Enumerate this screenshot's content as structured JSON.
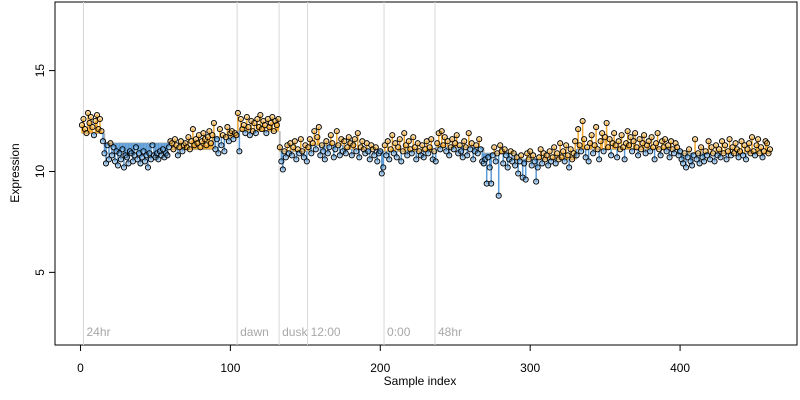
{
  "chart_data": {
    "type": "scatter",
    "xlabel": "Sample index",
    "ylabel": "Expression",
    "xlim": [
      -17,
      478
    ],
    "ylim": [
      1.4,
      18.4
    ],
    "xticks": [
      0,
      100,
      200,
      300,
      400
    ],
    "yticks": [
      5,
      10,
      15
    ],
    "above_color": "#f0a830",
    "below_color": "#5b9bd5",
    "fit_color": "#b0b0b0",
    "marker_color": "#d8d8d8",
    "markers": [
      {
        "x": 2,
        "label": "24hr"
      },
      {
        "x": 104.5,
        "label": "dawn"
      },
      {
        "x": 132.5,
        "label": "dusk"
      },
      {
        "x": 151.5,
        "label": "12:00"
      },
      {
        "x": 202.5,
        "label": "0:00"
      },
      {
        "x": 236.5,
        "label": "48hr"
      }
    ],
    "fit": [
      {
        "start": 1,
        "end": 15,
        "value": 11.9
      },
      {
        "start": 16,
        "end": 60,
        "value": 11.4
      },
      {
        "start": 61,
        "end": 88,
        "value": 11.1
      },
      {
        "start": 89,
        "end": 104,
        "value": 11.7
      },
      {
        "start": 105,
        "end": 132,
        "value": 12.0
      },
      {
        "start": 133,
        "end": 152,
        "value": 11.0
      },
      {
        "start": 153,
        "end": 175,
        "value": 11.3
      },
      {
        "start": 176,
        "end": 200,
        "value": 11.1
      },
      {
        "start": 201,
        "end": 236,
        "value": 11.0
      },
      {
        "start": 237,
        "end": 268,
        "value": 11.2
      },
      {
        "start": 269,
        "end": 290,
        "value": 10.9
      },
      {
        "start": 291,
        "end": 330,
        "value": 10.6
      },
      {
        "start": 331,
        "end": 400,
        "value": 11.1
      },
      {
        "start": 401,
        "end": 460,
        "value": 10.9
      }
    ],
    "x": [
      1,
      2,
      3,
      4,
      5,
      6,
      7,
      8,
      9,
      10,
      11,
      12,
      13,
      14,
      15,
      16,
      17,
      18,
      19,
      20,
      21,
      22,
      23,
      24,
      25,
      26,
      27,
      28,
      29,
      30,
      31,
      32,
      33,
      34,
      35,
      36,
      37,
      38,
      39,
      40,
      41,
      42,
      43,
      44,
      45,
      46,
      47,
      48,
      49,
      50,
      51,
      52,
      53,
      54,
      55,
      56,
      57,
      58,
      59,
      60,
      61,
      62,
      63,
      64,
      65,
      66,
      67,
      68,
      69,
      70,
      71,
      72,
      73,
      74,
      75,
      76,
      77,
      78,
      79,
      80,
      81,
      82,
      83,
      84,
      85,
      86,
      87,
      88,
      89,
      90,
      91,
      92,
      93,
      94,
      95,
      96,
      97,
      98,
      99,
      100,
      101,
      102,
      103,
      104,
      105,
      106,
      107,
      108,
      109,
      110,
      111,
      112,
      113,
      114,
      115,
      116,
      117,
      118,
      119,
      120,
      121,
      122,
      123,
      124,
      125,
      126,
      127,
      128,
      129,
      130,
      131,
      132,
      133,
      134,
      135,
      136,
      137,
      138,
      139,
      140,
      141,
      142,
      143,
      144,
      145,
      146,
      147,
      148,
      149,
      150,
      151,
      152,
      153,
      154,
      155,
      156,
      157,
      158,
      159,
      160,
      161,
      162,
      163,
      164,
      165,
      166,
      167,
      168,
      169,
      170,
      171,
      172,
      173,
      174,
      175,
      176,
      177,
      178,
      179,
      180,
      181,
      182,
      183,
      184,
      185,
      186,
      187,
      188,
      189,
      190,
      191,
      192,
      193,
      194,
      195,
      196,
      197,
      198,
      199,
      200,
      201,
      202,
      203,
      204,
      205,
      206,
      207,
      208,
      209,
      210,
      211,
      212,
      213,
      214,
      215,
      216,
      217,
      218,
      219,
      220,
      221,
      222,
      223,
      224,
      225,
      226,
      227,
      228,
      229,
      230,
      231,
      232,
      233,
      234,
      235,
      236,
      237,
      238,
      239,
      240,
      241,
      242,
      243,
      244,
      245,
      246,
      247,
      248,
      249,
      250,
      251,
      252,
      253,
      254,
      255,
      256,
      257,
      258,
      259,
      260,
      261,
      262,
      263,
      264,
      265,
      266,
      267,
      268,
      269,
      270,
      271,
      272,
      273,
      274,
      275,
      276,
      277,
      278,
      279,
      280,
      281,
      282,
      283,
      284,
      285,
      286,
      287,
      288,
      289,
      290,
      291,
      292,
      293,
      294,
      295,
      296,
      297,
      298,
      299,
      300,
      301,
      302,
      303,
      304,
      305,
      306,
      307,
      308,
      309,
      310,
      311,
      312,
      313,
      314,
      315,
      316,
      317,
      318,
      319,
      320,
      321,
      322,
      323,
      324,
      325,
      326,
      327,
      328,
      329,
      330,
      331,
      332,
      333,
      334,
      335,
      336,
      337,
      338,
      339,
      340,
      341,
      342,
      343,
      344,
      345,
      346,
      347,
      348,
      349,
      350,
      351,
      352,
      353,
      354,
      355,
      356,
      357,
      358,
      359,
      360,
      361,
      362,
      363,
      364,
      365,
      366,
      367,
      368,
      369,
      370,
      371,
      372,
      373,
      374,
      375,
      376,
      377,
      378,
      379,
      380,
      381,
      382,
      383,
      384,
      385,
      386,
      387,
      388,
      389,
      390,
      391,
      392,
      393,
      394,
      395,
      396,
      397,
      398,
      399,
      400,
      401,
      402,
      403,
      404,
      405,
      406,
      407,
      408,
      409,
      410,
      411,
      412,
      413,
      414,
      415,
      416,
      417,
      418,
      419,
      420,
      421,
      422,
      423,
      424,
      425,
      426,
      427,
      428,
      429,
      430,
      431,
      432,
      433,
      434,
      435,
      436,
      437,
      438,
      439,
      440,
      441,
      442,
      443,
      444,
      445,
      446,
      447,
      448,
      449,
      450,
      451,
      452,
      453,
      454,
      455,
      456,
      457,
      458,
      459,
      460
    ],
    "values": [
      12.3,
      12.6,
      12.1,
      11.9,
      12.9,
      12.4,
      12.7,
      12.2,
      11.8,
      12.5,
      12.8,
      12.1,
      12.6,
      12.0,
      11.5,
      10.9,
      10.4,
      11.3,
      10.6,
      11.4,
      10.8,
      11.2,
      10.5,
      11.0,
      10.3,
      10.9,
      10.6,
      11.1,
      10.2,
      10.8,
      10.7,
      10.4,
      11.0,
      10.9,
      10.5,
      10.8,
      11.2,
      10.6,
      10.9,
      10.4,
      10.7,
      11.0,
      10.5,
      10.8,
      10.2,
      10.9,
      10.6,
      11.3,
      10.8,
      10.7,
      10.9,
      10.6,
      11.0,
      10.8,
      11.1,
      10.7,
      10.9,
      10.8,
      11.2,
      11.5,
      11.4,
      11.1,
      11.6,
      11.3,
      10.8,
      11.2,
      11.5,
      11.0,
      11.3,
      11.4,
      11.2,
      11.7,
      11.1,
      11.5,
      12.1,
      11.3,
      11.6,
      11.4,
      11.8,
      11.2,
      11.5,
      11.9,
      11.6,
      11.3,
      11.7,
      12.0,
      11.4,
      11.8,
      12.4,
      11.1,
      11.6,
      10.9,
      12.1,
      11.3,
      11.8,
      11.0,
      11.7,
      12.2,
      11.5,
      11.9,
      12.0,
      11.6,
      11.9,
      11.8,
      12.9,
      11.0,
      12.6,
      12.1,
      12.3,
      11.9,
      12.7,
      12.2,
      11.8,
      12.5,
      12.0,
      12.4,
      11.9,
      12.6,
      12.2,
      12.8,
      12.1,
      12.5,
      12.3,
      11.9,
      12.6,
      12.2,
      12.4,
      12.7,
      12.0,
      12.5,
      12.3,
      12.6,
      11.2,
      10.5,
      10.1,
      11.0,
      10.7,
      11.3,
      10.9,
      11.4,
      10.8,
      11.2,
      11.5,
      10.6,
      11.1,
      10.9,
      11.6,
      11.0,
      10.7,
      11.3,
      10.5,
      11.2,
      11.6,
      10.9,
      11.4,
      12.0,
      11.1,
      11.7,
      12.2,
      10.8,
      11.3,
      11.0,
      10.6,
      11.5,
      10.9,
      11.2,
      11.8,
      11.4,
      10.7,
      11.1,
      12.0,
      11.3,
      10.8,
      11.6,
      11.0,
      11.5,
      10.9,
      11.2,
      11.7,
      11.4,
      10.8,
      11.3,
      11.6,
      11.0,
      11.9,
      10.7,
      11.2,
      11.5,
      11.1,
      10.9,
      11.4,
      11.0,
      10.6,
      11.3,
      11.1,
      10.8,
      11.2,
      10.5,
      10.9,
      11.0,
      9.9,
      10.2,
      11.3,
      10.8,
      11.5,
      10.6,
      11.1,
      11.8,
      10.9,
      11.4,
      10.7,
      11.2,
      11.6,
      10.5,
      11.0,
      11.9,
      11.3,
      10.8,
      11.5,
      11.1,
      10.9,
      11.7,
      11.2,
      10.6,
      11.4,
      11.0,
      10.8,
      11.3,
      10.7,
      11.1,
      11.5,
      10.9,
      11.2,
      11.6,
      10.6,
      11.0,
      10.5,
      11.4,
      11.9,
      11.1,
      12.0,
      11.3,
      11.7,
      11.0,
      11.5,
      10.8,
      11.2,
      11.6,
      11.1,
      11.4,
      11.8,
      10.9,
      11.3,
      11.0,
      10.7,
      11.5,
      11.2,
      10.8,
      11.9,
      11.1,
      11.4,
      10.6,
      11.0,
      11.3,
      10.9,
      11.6,
      11.1,
      10.5,
      10.4,
      10.6,
      9.4,
      10.7,
      10.2,
      9.4,
      10.8,
      11.2,
      10.5,
      10.9,
      8.8,
      11.3,
      11.0,
      10.4,
      11.1,
      10.8,
      10.2,
      10.6,
      11.0,
      10.5,
      10.9,
      10.3,
      10.7,
      9.9,
      10.5,
      10.8,
      9.7,
      10.4,
      9.6,
      10.9,
      10.6,
      11.0,
      10.3,
      10.8,
      10.5,
      9.5,
      10.2,
      10.7,
      11.1,
      10.4,
      10.9,
      10.6,
      10.8,
      10.3,
      11.0,
      10.5,
      10.7,
      11.2,
      10.4,
      10.9,
      10.6,
      11.4,
      10.7,
      11.0,
      10.5,
      11.3,
      10.8,
      10.2,
      11.1,
      10.6,
      10.9,
      11.5,
      10.8,
      12.1,
      11.3,
      11.0,
      12.5,
      11.6,
      10.7,
      11.2,
      10.5,
      11.4,
      11.8,
      10.9,
      11.3,
      12.2,
      11.1,
      10.6,
      11.5,
      11.9,
      11.0,
      11.7,
      12.4,
      11.2,
      11.6,
      10.8,
      11.4,
      11.9,
      11.3,
      10.7,
      11.5,
      11.1,
      11.8,
      11.2,
      10.6,
      11.4,
      12.0,
      11.3,
      11.7,
      11.0,
      11.5,
      11.9,
      11.2,
      10.8,
      11.6,
      11.1,
      11.4,
      11.8,
      10.9,
      11.3,
      11.5,
      11.0,
      11.7,
      11.2,
      10.6,
      11.4,
      11.9,
      11.1,
      10.8,
      11.5,
      11.2,
      11.6,
      11.0,
      11.3,
      10.7,
      11.5,
      11.1,
      10.9,
      11.4,
      11.2,
      10.8,
      11.0,
      10.6,
      10.4,
      10.9,
      10.2,
      10.7,
      11.1,
      10.5,
      10.3,
      10.8,
      11.6,
      10.6,
      10.9,
      10.4,
      11.2,
      10.7,
      10.5,
      11.0,
      10.8,
      11.5,
      10.6,
      11.2,
      10.9,
      10.5,
      11.3,
      10.8,
      11.1,
      10.7,
      11.5,
      10.9,
      11.3,
      10.6,
      11.0,
      11.6,
      10.8,
      11.2,
      10.9,
      11.4,
      11.1,
      10.7,
      11.0,
      11.5,
      10.8,
      11.3,
      10.6,
      11.1,
      11.4,
      10.9,
      11.7,
      11.0,
      10.8,
      11.3,
      11.6,
      10.9,
      11.2,
      10.7,
      11.0,
      11.5,
      11.4,
      10.9,
      11.1
    ]
  }
}
